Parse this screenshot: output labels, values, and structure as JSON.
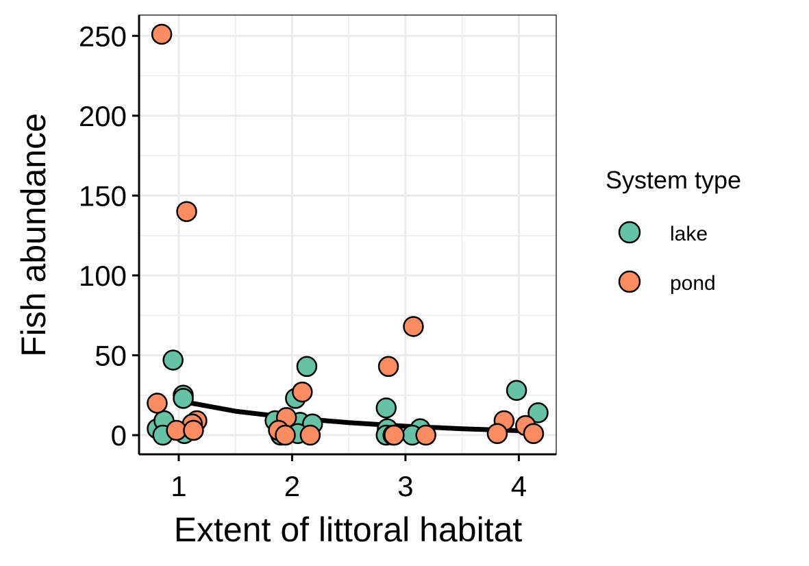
{
  "chart_data": {
    "type": "scatter",
    "xlabel": "Extent of littoral habitat",
    "ylabel": "Fish abundance",
    "xlim": [
      0.65,
      4.33
    ],
    "ylim": [
      -12,
      263
    ],
    "x_ticks": [
      1,
      2,
      3,
      4
    ],
    "y_ticks": [
      0,
      50,
      100,
      150,
      200,
      250
    ],
    "x_tick_labels": [
      "1",
      "2",
      "3",
      "4"
    ],
    "y_tick_labels": [
      "0",
      "50",
      "100",
      "150",
      "200",
      "250"
    ],
    "grid": true,
    "legend": {
      "title": "System type",
      "position": "right",
      "entries": [
        "lake",
        "pond"
      ]
    },
    "colors": {
      "lake": "#66c2a5",
      "pond": "#fc8d62",
      "point_outline": "#000000",
      "trend_line": "#000000",
      "grid": "#ebebeb",
      "axis": "#000000"
    },
    "series": [
      {
        "name": "lake",
        "points": [
          {
            "x": 0.95,
            "y": 47
          },
          {
            "x": 1.04,
            "y": 25
          },
          {
            "x": 1.04,
            "y": 23
          },
          {
            "x": 0.81,
            "y": 4
          },
          {
            "x": 0.87,
            "y": 9
          },
          {
            "x": 0.86,
            "y": 0
          },
          {
            "x": 1.05,
            "y": 1
          },
          {
            "x": 2.13,
            "y": 43
          },
          {
            "x": 2.03,
            "y": 23
          },
          {
            "x": 1.85,
            "y": 9
          },
          {
            "x": 2.07,
            "y": 8
          },
          {
            "x": 2.18,
            "y": 7
          },
          {
            "x": 1.9,
            "y": 0
          },
          {
            "x": 2.05,
            "y": 1
          },
          {
            "x": 2.83,
            "y": 17
          },
          {
            "x": 2.84,
            "y": 4
          },
          {
            "x": 3.13,
            "y": 4
          },
          {
            "x": 2.83,
            "y": 0
          },
          {
            "x": 3.06,
            "y": 0
          },
          {
            "x": 3.98,
            "y": 28
          },
          {
            "x": 4.17,
            "y": 14
          }
        ]
      },
      {
        "name": "pond",
        "points": [
          {
            "x": 0.85,
            "y": 251
          },
          {
            "x": 1.07,
            "y": 140
          },
          {
            "x": 0.81,
            "y": 20
          },
          {
            "x": 1.16,
            "y": 9
          },
          {
            "x": 1.12,
            "y": 7
          },
          {
            "x": 0.98,
            "y": 3
          },
          {
            "x": 1.13,
            "y": 3
          },
          {
            "x": 2.09,
            "y": 27
          },
          {
            "x": 1.95,
            "y": 11
          },
          {
            "x": 1.88,
            "y": 3
          },
          {
            "x": 1.94,
            "y": 0
          },
          {
            "x": 2.16,
            "y": 0
          },
          {
            "x": 3.07,
            "y": 68
          },
          {
            "x": 2.85,
            "y": 43
          },
          {
            "x": 2.89,
            "y": 0
          },
          {
            "x": 2.9,
            "y": 0
          },
          {
            "x": 3.18,
            "y": 0
          },
          {
            "x": 3.87,
            "y": 9
          },
          {
            "x": 4.06,
            "y": 6
          },
          {
            "x": 3.81,
            "y": 1
          },
          {
            "x": 4.13,
            "y": 1
          }
        ]
      }
    ],
    "trend_line": {
      "x": [
        1.0,
        1.5,
        2.0,
        2.5,
        3.0,
        3.5,
        4.0
      ],
      "y": [
        21.5,
        15.0,
        10.8,
        7.8,
        5.6,
        4.0,
        2.8
      ]
    }
  }
}
